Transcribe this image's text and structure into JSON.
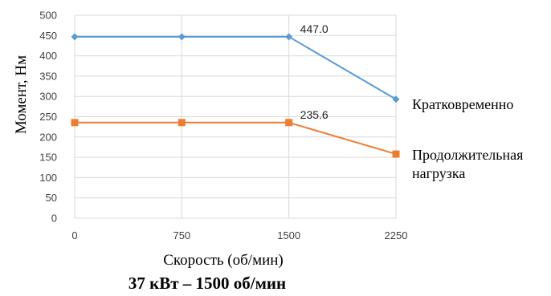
{
  "chart_data": {
    "type": "line",
    "x": [
      0,
      750,
      1500,
      2250
    ],
    "xticks": [
      "0",
      "750",
      "1500",
      "2250"
    ],
    "ylim": [
      0,
      500
    ],
    "yticks": [
      "0",
      "50",
      "100",
      "150",
      "200",
      "250",
      "300",
      "350",
      "400",
      "450",
      "500"
    ],
    "grid": true,
    "xlabel": "Скорость (об/мин)",
    "ylabel": "Момент, Нм",
    "footer_title": "37 кВт – 1500 об/мин",
    "series": [
      {
        "name": "Кратковременно",
        "color": "#5b9bd5",
        "marker": "diamond",
        "values": [
          447,
          447,
          447,
          293
        ]
      },
      {
        "name_lines": [
          "Продолжительная",
          "нагрузка"
        ],
        "color": "#ed7d31",
        "marker": "square",
        "values": [
          235.6,
          235.6,
          235.6,
          158
        ]
      }
    ],
    "annotations": [
      {
        "series": 0,
        "index": 2,
        "text": "447.0"
      },
      {
        "series": 1,
        "index": 2,
        "text": "235.6"
      }
    ]
  }
}
